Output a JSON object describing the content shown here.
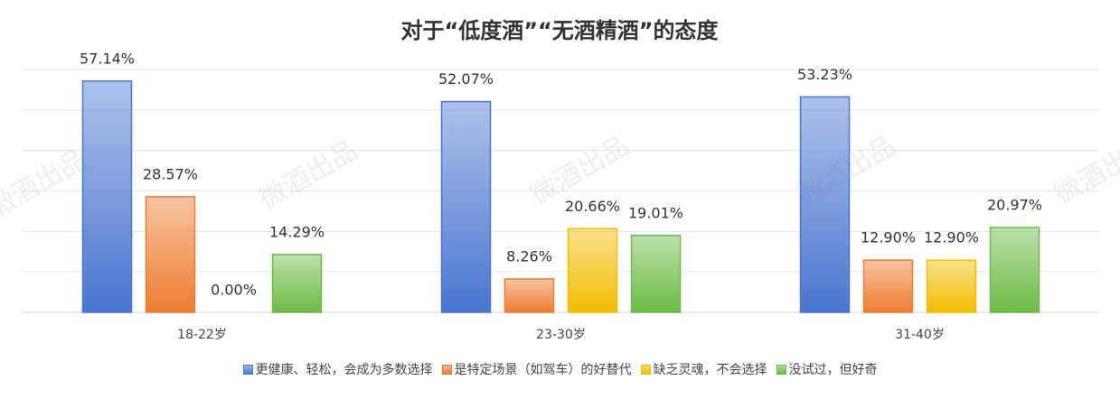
{
  "chart_data": {
    "type": "bar",
    "title": "对于“低度酒”“无酒精酒”的态度",
    "watermark": "微酒出品",
    "categories": [
      "18-22岁",
      "23-30岁",
      "31-40岁"
    ],
    "series": [
      {
        "name": "更健康、轻松，会成为多数选择",
        "color": "#4a76d0",
        "values": [
          57.14,
          52.07,
          53.23
        ],
        "value_labels": [
          "57.14%",
          "52.07%",
          "53.23%"
        ]
      },
      {
        "name": "是特定场景（如驾车）的好替代",
        "color": "#ed7d31",
        "values": [
          28.57,
          8.26,
          12.9
        ],
        "value_labels": [
          "28.57%",
          "8.26%",
          "12.90%"
        ]
      },
      {
        "name": "缺乏灵魂，不会选择",
        "color": "#f2bd00",
        "values": [
          0,
          20.66,
          12.9
        ],
        "value_labels": [
          "0.00%",
          "20.66%",
          "12.90%"
        ]
      },
      {
        "name": "没试过，但好奇",
        "color": "#6cbb45",
        "values": [
          14.29,
          19.01,
          20.97
        ],
        "value_labels": [
          "14.29%",
          "19.01%",
          "20.97%"
        ]
      }
    ],
    "ylim": [
      0,
      60
    ],
    "yticks": [
      0,
      10,
      20,
      30,
      40,
      50,
      60
    ],
    "grid": true,
    "legend": "bottom"
  }
}
